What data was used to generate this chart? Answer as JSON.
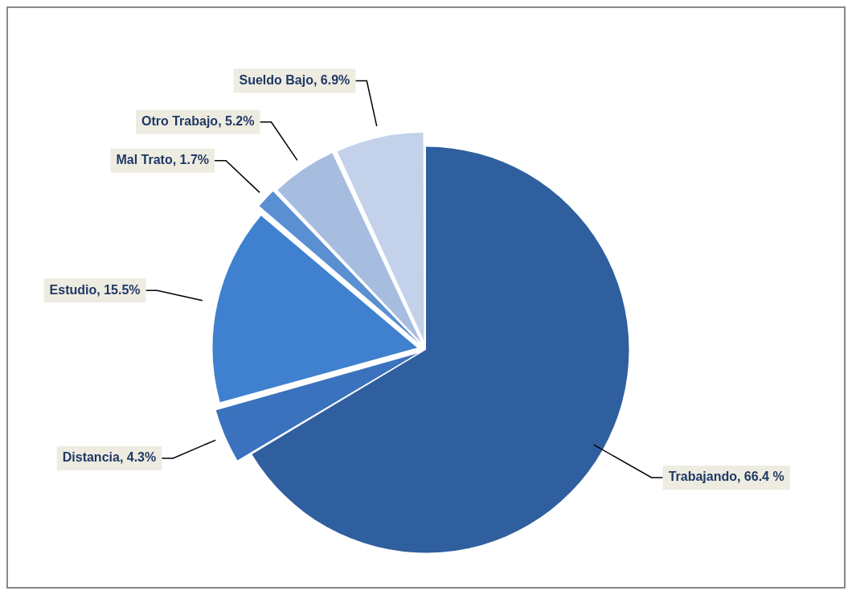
{
  "chart_data": {
    "type": "pie",
    "categories": [
      "Trabajando",
      "Distancia",
      "Estudio",
      "Mal Trato",
      "Otro Trabajo",
      "Sueldo Bajo"
    ],
    "values": [
      66.4,
      4.3,
      15.5,
      1.7,
      5.2,
      6.9
    ],
    "colors": [
      "#2f5f9e",
      "#3a72bd",
      "#3f80cf",
      "#5a8fd2",
      "#a7bde0",
      "#c3d2ea"
    ],
    "value_labels": [
      "66.4 %",
      "4.3%",
      "15.5%",
      "1.7%",
      "5.2%",
      "6.9%"
    ],
    "legend": false
  }
}
